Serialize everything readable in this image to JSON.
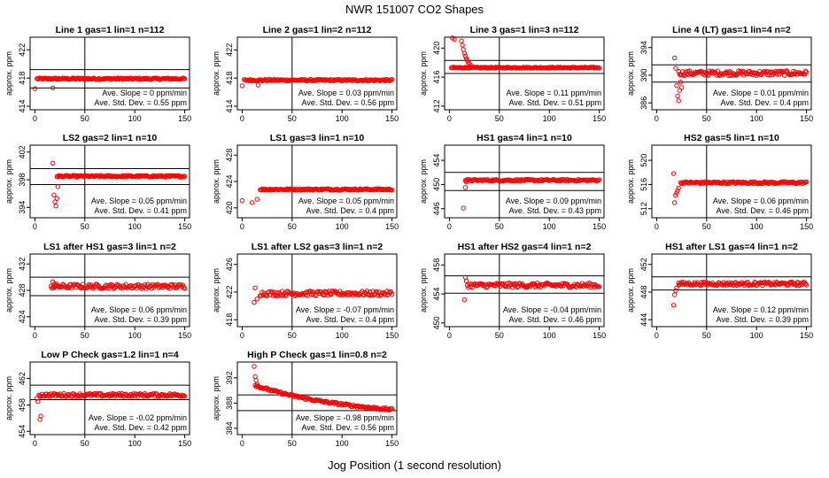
{
  "figure": {
    "title": "NWR  151007  CO2 Shapes",
    "xlabel": "Jog Position (1 second resolution)"
  },
  "colors": {
    "points": "#ff0000",
    "axes": "#000000",
    "background": "#ffffff"
  },
  "chart_data": [
    {
      "type": "scatter",
      "title": "Line 1 gas=1 lin=1 n=112",
      "ylabel": "approx. ppm",
      "xlim": [
        0,
        150
      ],
      "ylim": [
        413.5,
        423.8
      ],
      "yticks": [
        414,
        418,
        422
      ],
      "xticks": [
        0,
        50,
        100,
        150
      ],
      "hlines": [
        416.6,
        419.2
      ],
      "vline": 50,
      "slope_label": "Ave. Slope =  0  ppm/min",
      "std_label": "Ave. Std. Dev. =  0.55  ppm",
      "series": {
        "level": 417.9,
        "x_start": 2,
        "x_end": 150,
        "segments": [
          [
            0,
            416.5
          ],
          [
            18,
            416.6
          ],
          [
            23,
            417.8
          ]
        ],
        "noise": 0.12,
        "spikes": []
      }
    },
    {
      "type": "scatter",
      "title": "Line 2 gas=1 lin=2 n=112",
      "ylabel": "approx. ppm",
      "xlim": [
        0,
        150
      ],
      "ylim": [
        413.5,
        423.8
      ],
      "yticks": [
        414,
        418,
        422
      ],
      "xticks": [
        0,
        50,
        100,
        150
      ],
      "hlines": null,
      "vline": 50,
      "slope_label": "Ave. Slope =  0.03  ppm/min",
      "std_label": "Ave. Std. Dev. =  0.56  ppm",
      "series": {
        "level": 417.7,
        "x_start": 2,
        "x_end": 150,
        "segments": [
          [
            0,
            416.9
          ],
          [
            16,
            417.0
          ],
          [
            20,
            417.6
          ]
        ],
        "noise": 0.12,
        "spikes": []
      }
    },
    {
      "type": "scatter",
      "title": "Line 3 gas=1 lin=3 n=112",
      "ylabel": "approx. ppm",
      "xlim": [
        0,
        150
      ],
      "ylim": [
        411.5,
        421.5
      ],
      "yticks": [
        412,
        416,
        420
      ],
      "xticks": [
        0,
        50,
        100,
        150
      ],
      "hlines": [
        416.5,
        418.3
      ],
      "vline": 50,
      "slope_label": "Ave. Slope =  0.11  ppm/min",
      "std_label": "Ave. Std. Dev. =  0.51  ppm",
      "series": {
        "level": 417.3,
        "x_start": 2,
        "x_end": 150,
        "segments": [],
        "noise": 0.08,
        "spikes": [
          [
            3,
            421.4
          ],
          [
            5,
            421.2
          ],
          [
            12,
            421.0
          ],
          [
            13,
            420.4
          ],
          [
            14,
            419.8
          ],
          [
            15,
            419.3
          ],
          [
            16,
            418.9
          ],
          [
            17,
            418.6
          ],
          [
            18,
            418.3
          ],
          [
            19,
            418.0
          ],
          [
            20,
            417.8
          ],
          [
            22,
            417.6
          ]
        ]
      }
    },
    {
      "type": "scatter",
      "title": "Line 4 (LT) gas=1 lin=4 n=2",
      "ylabel": "approx. ppm",
      "xlim": [
        0,
        150
      ],
      "ylim": [
        385,
        395.5
      ],
      "yticks": [
        386,
        390,
        394
      ],
      "xticks": [
        0,
        50,
        100,
        150
      ],
      "hlines": [
        389.0,
        391.5
      ],
      "vline": 50,
      "slope_label": "Ave. Slope =  0.01  ppm/min",
      "std_label": "Ave. Std. Dev. =  0.4  ppm",
      "series": {
        "level": 390.3,
        "x_start": 22,
        "x_end": 150,
        "segments": [],
        "noise": 0.35,
        "spikes": [
          [
            18,
            392.5
          ],
          [
            19,
            391.0
          ],
          [
            20,
            388.5
          ],
          [
            21,
            387.0
          ],
          [
            22,
            386.3
          ],
          [
            23,
            387.8
          ],
          [
            24,
            389.0
          ],
          [
            25,
            388.2
          ]
        ]
      }
    },
    {
      "type": "scatter",
      "title": "LS2 gas=2 lin=1 n=10",
      "ylabel": "approx. ppm",
      "xlim": [
        0,
        150
      ],
      "ylim": [
        392.5,
        403
      ],
      "yticks": [
        394,
        398,
        402
      ],
      "xticks": [
        0,
        50,
        100,
        150
      ],
      "hlines": [
        397.3,
        399.6
      ],
      "vline": 50,
      "slope_label": "Ave. Slope =  0.05  ppm/min",
      "std_label": "Ave. Std. Dev. =  0.41  ppm",
      "series": {
        "level": 398.5,
        "x_start": 22,
        "x_end": 150,
        "segments": [],
        "noise": 0.12,
        "spikes": [
          [
            18,
            400.4
          ],
          [
            19,
            395.8
          ],
          [
            20,
            394.8
          ],
          [
            21,
            394.2
          ],
          [
            22,
            395.3
          ],
          [
            23,
            397.0
          ],
          [
            24,
            398.6
          ]
        ]
      }
    },
    {
      "type": "scatter",
      "title": "LS1 gas=3 lin=1 n=10",
      "ylabel": "approx. ppm",
      "xlim": [
        0,
        150
      ],
      "ylim": [
        418.5,
        429.5
      ],
      "yticks": [
        420,
        424,
        428
      ],
      "xticks": [
        0,
        50,
        100,
        150
      ],
      "hlines": null,
      "vline": 50,
      "slope_label": "Ave. Slope =  0.05  ppm/min",
      "std_label": "Ave. Std. Dev. =  0.4  ppm",
      "series": {
        "level": 422.8,
        "x_start": 18,
        "x_end": 150,
        "segments": [
          [
            0,
            421.1
          ],
          [
            10,
            420.8
          ],
          [
            15,
            421.3
          ]
        ],
        "noise": 0.12,
        "spikes": []
      }
    },
    {
      "type": "scatter",
      "title": "HS1 gas=4 lin=1 n=10",
      "ylabel": "approx. ppm",
      "xlim": [
        0,
        150
      ],
      "ylim": [
        444.5,
        456.5
      ],
      "yticks": [
        446,
        450,
        454
      ],
      "xticks": [
        0,
        50,
        100,
        150
      ],
      "hlines": [
        449.0,
        452.0
      ],
      "vline": 50,
      "slope_label": "Ave. Slope =  0.09  ppm/min",
      "std_label": "Ave. Std. Dev. =  0.43  ppm",
      "series": {
        "level": 450.7,
        "x_start": 16,
        "x_end": 150,
        "segments": [],
        "noise": 0.15,
        "spikes": [
          [
            14,
            446.1
          ],
          [
            16,
            449.5
          ],
          [
            17,
            450.4
          ]
        ]
      }
    },
    {
      "type": "scatter",
      "title": "HS2 gas=5 lin=1 n=10",
      "ylabel": "approx. ppm",
      "xlim": [
        0,
        150
      ],
      "ylim": [
        510.5,
        522.5
      ],
      "yticks": [
        512,
        516,
        520
      ],
      "xticks": [
        0,
        50,
        100,
        150
      ],
      "hlines": null,
      "vline": 50,
      "slope_label": "Ave. Slope =  0.06  ppm/min",
      "std_label": "Ave. Std. Dev. =  0.46  ppm",
      "series": {
        "level": 516.3,
        "x_start": 24,
        "x_end": 150,
        "segments": [],
        "noise": 0.18,
        "spikes": [
          [
            17,
            517.8
          ],
          [
            18,
            513.0
          ],
          [
            19,
            514.2
          ],
          [
            20,
            514.6
          ],
          [
            21,
            515.0
          ],
          [
            22,
            515.4
          ]
        ]
      }
    },
    {
      "type": "scatter",
      "title": "LS1 after HS1 gas=3 lin=1 n=2",
      "ylabel": "approx. ppm",
      "xlim": [
        0,
        150
      ],
      "ylim": [
        422.5,
        433.5
      ],
      "yticks": [
        424,
        428,
        432
      ],
      "xticks": [
        0,
        50,
        100,
        150
      ],
      "hlines": [
        427.2,
        430.0
      ],
      "vline": 50,
      "slope_label": "Ave. Slope =  0.06  ppm/min",
      "std_label": "Ave. Std. Dev. =  0.39  ppm",
      "series": {
        "level": 428.6,
        "x_start": 16,
        "x_end": 150,
        "segments": [],
        "noise": 0.35,
        "spikes": [
          [
            18,
            429.3
          ],
          [
            20,
            429.0
          ]
        ]
      }
    },
    {
      "type": "scatter",
      "title": "LS1 after LS2 gas=3 lin=1 n=2",
      "ylabel": "approx. ppm",
      "xlim": [
        0,
        150
      ],
      "ylim": [
        417,
        427.5
      ],
      "yticks": [
        418,
        422,
        426
      ],
      "xticks": [
        0,
        50,
        100,
        150
      ],
      "hlines": null,
      "vline": 50,
      "slope_label": "Ave. Slope =  -0.07  ppm/min",
      "std_label": "Ave. Std. Dev. =  0.4  ppm",
      "series": {
        "level": 421.8,
        "x_start": 18,
        "x_end": 150,
        "segments": [],
        "noise": 0.35,
        "spikes": [
          [
            12,
            420.5
          ],
          [
            13,
            422.6
          ],
          [
            15,
            421.0
          ]
        ]
      }
    },
    {
      "type": "scatter",
      "title": "HS1 after HS2 gas=4 lin=1 n=2",
      "ylabel": "approx. ppm",
      "xlim": [
        0,
        150
      ],
      "ylim": [
        449.5,
        459.5
      ],
      "yticks": [
        450,
        454,
        458
      ],
      "xticks": [
        0,
        50,
        100,
        150
      ],
      "hlines": [
        454.1,
        456.5
      ],
      "vline": 50,
      "slope_label": "Ave. Slope =  -0.04  ppm/min",
      "std_label": "Ave. Std. Dev. =  0.46  ppm",
      "series": {
        "level": 455.2,
        "x_start": 18,
        "x_end": 150,
        "segments": [],
        "noise": 0.32,
        "spikes": [
          [
            15,
            453.2
          ],
          [
            16,
            456.3
          ],
          [
            17,
            455.8
          ]
        ]
      }
    },
    {
      "type": "scatter",
      "title": "HS1 after LS1 gas=4 lin=1 n=2",
      "ylabel": "approx. ppm",
      "xlim": [
        0,
        150
      ],
      "ylim": [
        443,
        453.5
      ],
      "yticks": [
        444,
        448,
        452
      ],
      "xticks": [
        0,
        50,
        100,
        150
      ],
      "hlines": [
        448.3,
        450.2
      ],
      "vline": 50,
      "slope_label": "Ave. Slope =  0.12  ppm/min",
      "std_label": "Ave. Std. Dev. =  0.39  ppm",
      "series": {
        "level": 449.2,
        "x_start": 22,
        "x_end": 150,
        "segments": [],
        "noise": 0.25,
        "spikes": [
          [
            17,
            446.1
          ],
          [
            18,
            447.6
          ],
          [
            19,
            448.2
          ],
          [
            20,
            448.6
          ],
          [
            22,
            449.0
          ]
        ]
      }
    },
    {
      "type": "scatter",
      "title": "Low P Check gas=1.2 lin=1 n=4",
      "ylabel": "approx. ppm",
      "xlim": [
        0,
        150
      ],
      "ylim": [
        453.5,
        464.5
      ],
      "yticks": [
        454,
        458,
        462
      ],
      "xticks": [
        0,
        50,
        100,
        150
      ],
      "hlines": [
        458.8,
        461.0
      ],
      "vline": 50,
      "slope_label": "Ave. Slope =  -0.02  ppm/min",
      "std_label": "Ave. Std. Dev. =  0.42  ppm",
      "series": {
        "level": 459.5,
        "x_start": 4,
        "x_end": 150,
        "segments": [],
        "noise": 0.25,
        "spikes": [
          [
            2,
            459.0
          ],
          [
            3,
            458.5
          ],
          [
            5,
            455.8
          ],
          [
            6,
            456.3
          ]
        ]
      }
    },
    {
      "type": "scatter",
      "title": "High P Check gas=1 lin=0.8 n=2",
      "ylabel": "approx. ppm",
      "xlim": [
        0,
        150
      ],
      "ylim": [
        383,
        394.5
      ],
      "yticks": [
        384,
        388,
        392
      ],
      "xticks": [
        0,
        50,
        100,
        150
      ],
      "hlines": [
        386.8,
        389.3
      ],
      "vline": 50,
      "slope_label": "Ave. Slope =  -0.98  ppm/min",
      "std_label": "Ave. Std. Dev. =  0.56  ppm",
      "series": {
        "level": null,
        "x_start": 13,
        "x_end": 150,
        "segments": [],
        "noise": 0.18,
        "decay": {
          "from": 390.8,
          "to": 386.5
        },
        "spikes": [
          [
            12,
            393.8
          ],
          [
            13,
            392.2
          ],
          [
            14,
            391.6
          ],
          [
            15,
            391.0
          ]
        ]
      }
    }
  ]
}
